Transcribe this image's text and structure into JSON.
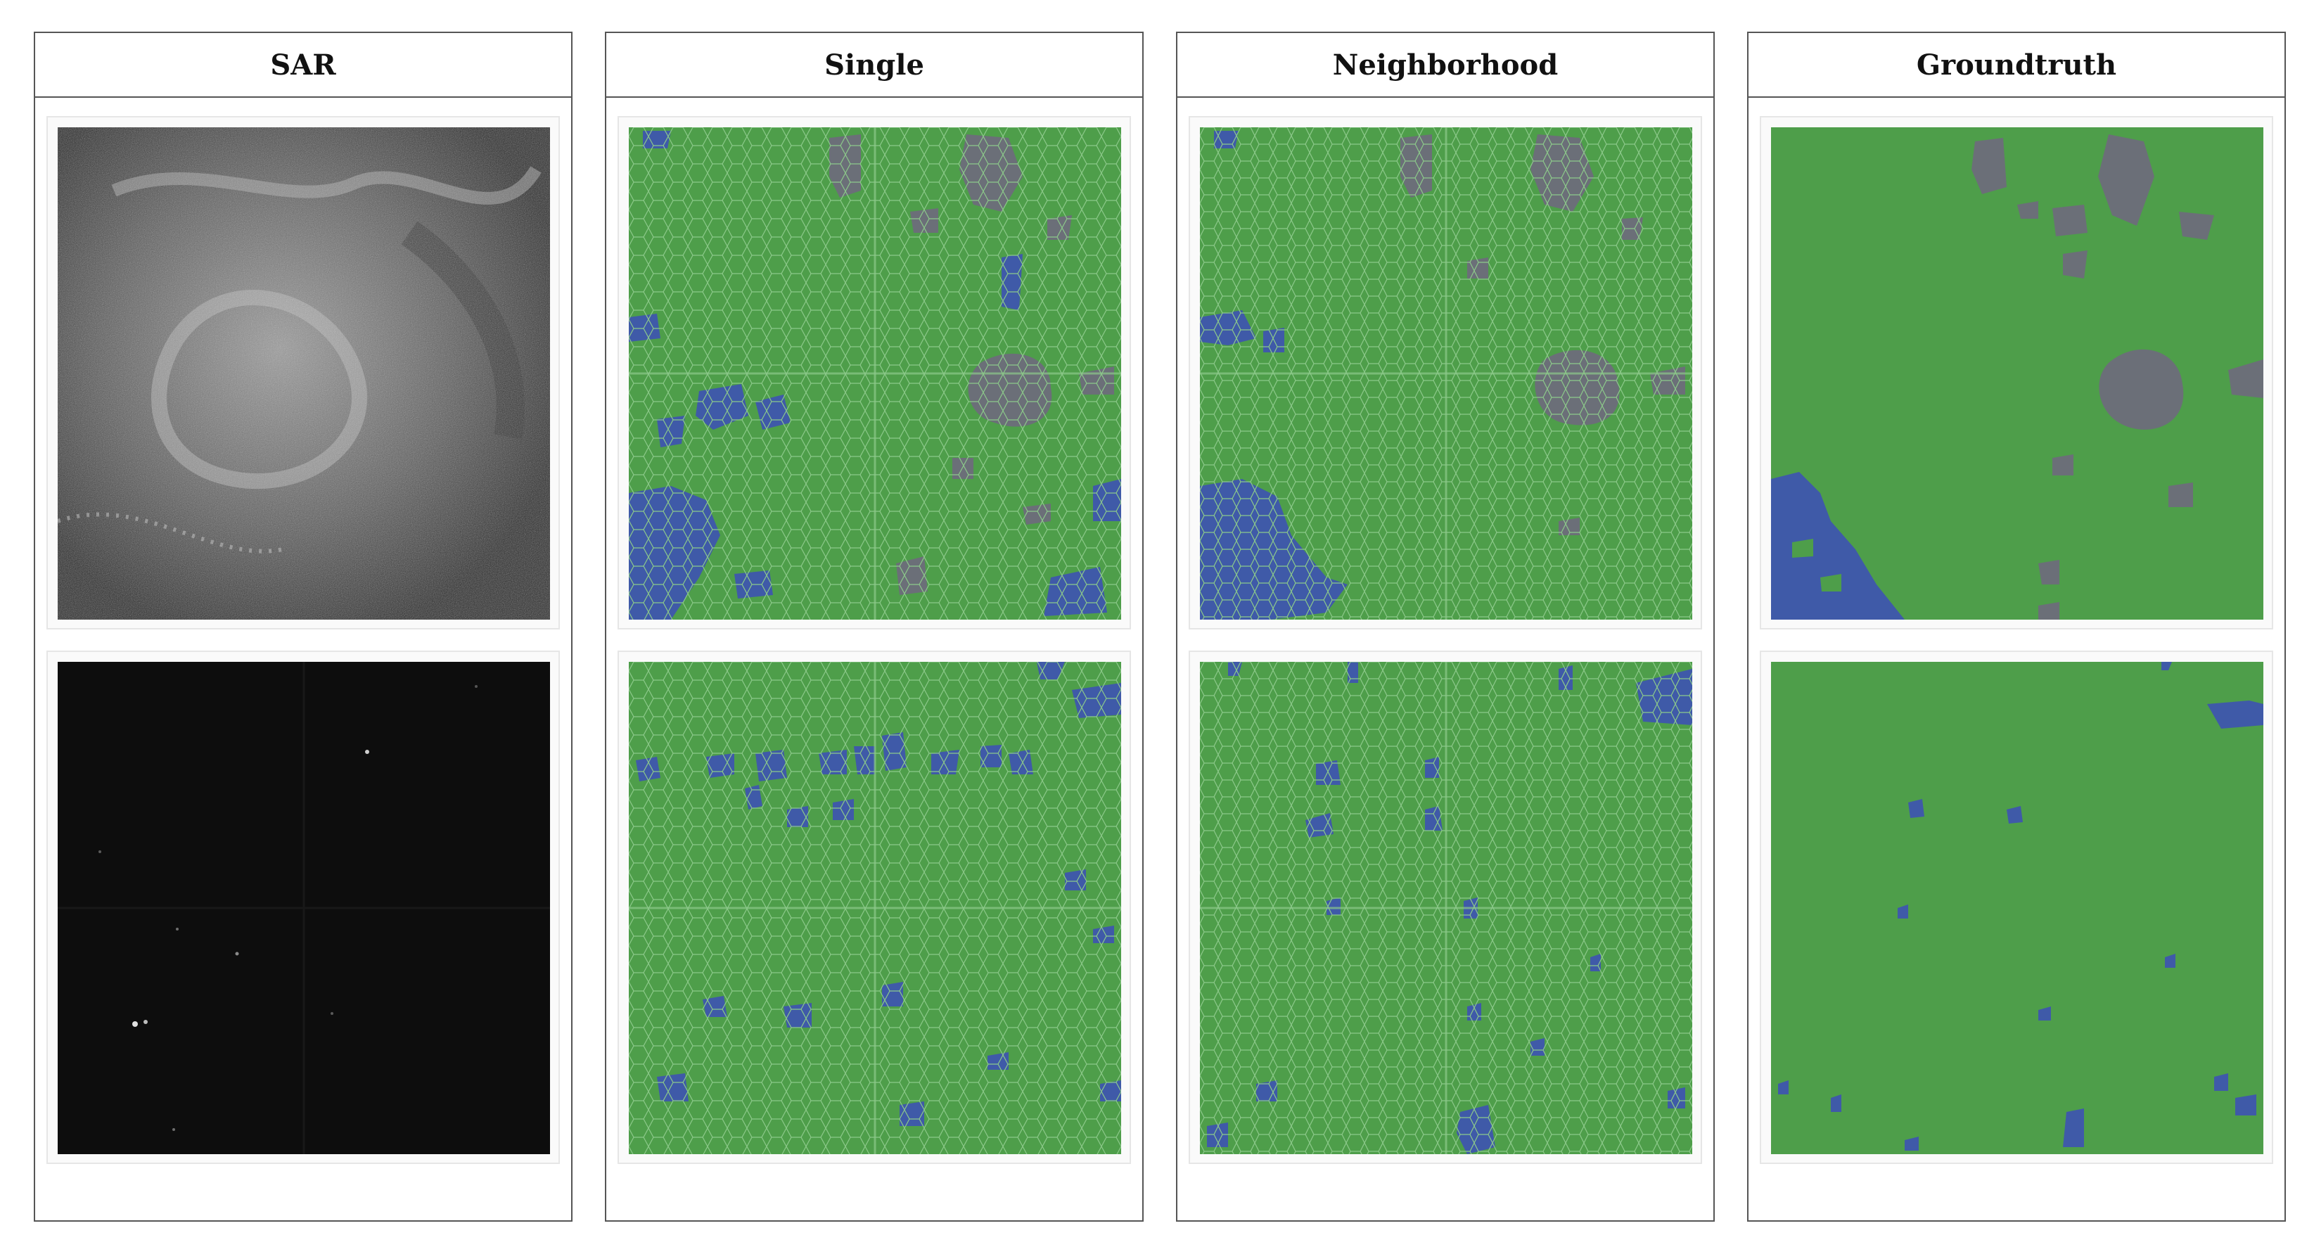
{
  "columns": [
    {
      "key": "sar",
      "title": "SAR"
    },
    {
      "key": "single",
      "title": "Single"
    },
    {
      "key": "neighborhood",
      "title": "Neighborhood"
    },
    {
      "key": "groundtruth",
      "title": "Groundtruth"
    }
  ],
  "colors": {
    "land_green": "#4e9e4a",
    "segment_line": "#8cc98a",
    "water_blue": "#3f5aa8",
    "building_gray": "#6b6f78",
    "sar_dark": "#101010"
  }
}
